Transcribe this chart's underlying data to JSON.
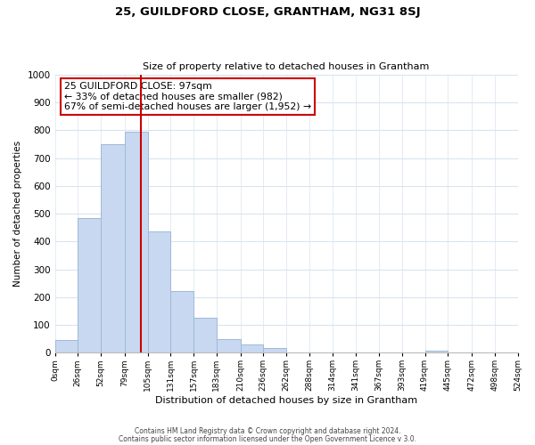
{
  "title": "25, GUILDFORD CLOSE, GRANTHAM, NG31 8SJ",
  "subtitle": "Size of property relative to detached houses in Grantham",
  "xlabel": "Distribution of detached houses by size in Grantham",
  "ylabel": "Number of detached properties",
  "bin_edges": [
    0,
    26,
    52,
    79,
    105,
    131,
    157,
    183,
    210,
    236,
    262,
    288,
    314,
    341,
    367,
    393,
    419,
    445,
    472,
    498,
    524
  ],
  "bar_heights": [
    45,
    485,
    750,
    795,
    435,
    220,
    125,
    50,
    30,
    15,
    0,
    0,
    0,
    0,
    0,
    0,
    8,
    0,
    0,
    0
  ],
  "bar_color": "#c8d8f0",
  "bar_edgecolor": "#a0b8d8",
  "vline_x": 97,
  "vline_color": "#cc0000",
  "annotation_line1": "25 GUILDFORD CLOSE: 97sqm",
  "annotation_line2": "← 33% of detached houses are smaller (982)",
  "annotation_line3": "67% of semi-detached houses are larger (1,952) →",
  "annotation_box_edgecolor": "#cc0000",
  "annotation_box_facecolor": "#ffffff",
  "ylim": [
    0,
    1000
  ],
  "yticks": [
    0,
    100,
    200,
    300,
    400,
    500,
    600,
    700,
    800,
    900,
    1000
  ],
  "tick_labels": [
    "0sqm",
    "26sqm",
    "52sqm",
    "79sqm",
    "105sqm",
    "131sqm",
    "157sqm",
    "183sqm",
    "210sqm",
    "236sqm",
    "262sqm",
    "288sqm",
    "314sqm",
    "341sqm",
    "367sqm",
    "393sqm",
    "419sqm",
    "445sqm",
    "472sqm",
    "498sqm",
    "524sqm"
  ],
  "footnote1": "Contains HM Land Registry data © Crown copyright and database right 2024.",
  "footnote2": "Contains public sector information licensed under the Open Government Licence v 3.0.",
  "bg_color": "#ffffff",
  "grid_color": "#d8e4f0"
}
